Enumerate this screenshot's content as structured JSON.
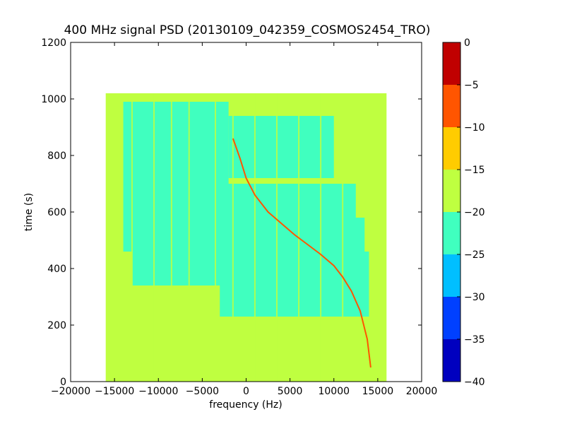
{
  "chart_data": {
    "type": "heatmap",
    "title": "400 MHz signal PSD (20130109_042359_COSMOS2454_TRO)",
    "xlabel": "frequency (Hz)",
    "ylabel": "time (s)",
    "xlim": [
      -20000,
      20000
    ],
    "ylim": [
      0,
      1200
    ],
    "xticks": [
      "−20000",
      "−15000",
      "−10000",
      "−5000",
      "0",
      "5000",
      "10000",
      "15000",
      "20000"
    ],
    "xtick_values": [
      -20000,
      -15000,
      -10000,
      -5000,
      0,
      5000,
      10000,
      15000,
      20000
    ],
    "yticks": [
      "0",
      "200",
      "400",
      "600",
      "800",
      "1000",
      "1200"
    ],
    "ytick_values": [
      0,
      200,
      400,
      600,
      800,
      1000,
      1200
    ],
    "data_extent": {
      "x": [
        -16000,
        16000
      ],
      "y": [
        0,
        1020
      ]
    },
    "colorbar": {
      "levels": [
        -40,
        -35,
        -30,
        -25,
        -20,
        -15,
        -10,
        -5,
        0
      ],
      "ticks": [
        "0",
        "−5",
        "−10",
        "−15",
        "−20",
        "−25",
        "−30",
        "−35",
        "−40"
      ],
      "tick_values": [
        0,
        -5,
        -10,
        -15,
        -20,
        -25,
        -30,
        -35,
        -40
      ],
      "colors": [
        "#0000bf",
        "#0040ff",
        "#00bfff",
        "#40ffbf",
        "#bfff40",
        "#ffcc00",
        "#ff5500",
        "#c00000"
      ]
    },
    "signal_trace": {
      "x": [
        14200,
        13800,
        13000,
        12000,
        11000,
        10000,
        8500,
        7000,
        5500,
        4000,
        2500,
        1000,
        0,
        -700,
        -1500
      ],
      "y": [
        50,
        150,
        250,
        320,
        370,
        410,
        450,
        485,
        520,
        560,
        600,
        660,
        720,
        790,
        860
      ]
    },
    "vertical_lines_hz": [
      -15000,
      -13000,
      -10500,
      -8500,
      -6500,
      -3500,
      -1500,
      1000,
      3500,
      6000,
      8500,
      11000
    ]
  }
}
